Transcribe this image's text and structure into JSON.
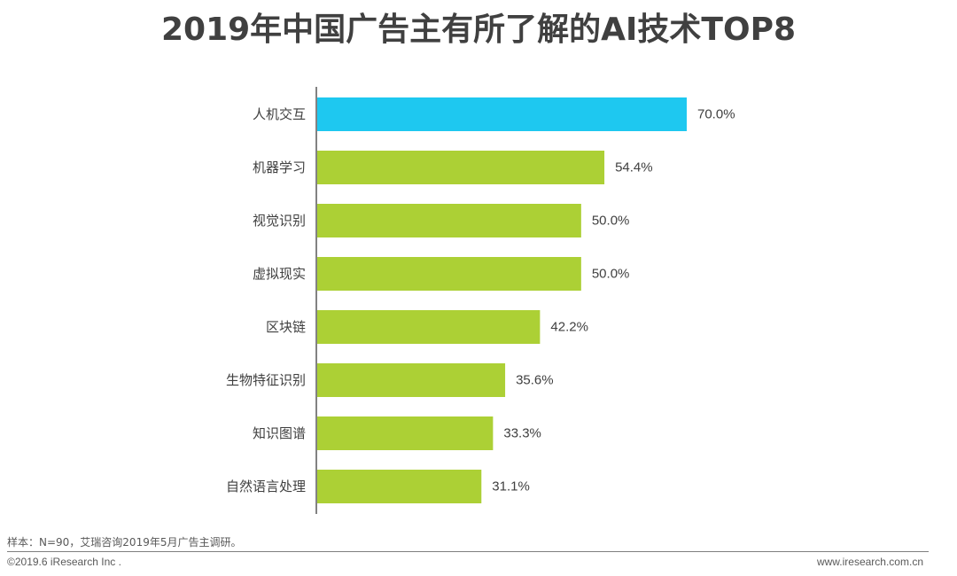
{
  "title": "2019年中国广告主有所了解的AI技术TOP8",
  "chart_data": {
    "type": "bar",
    "orientation": "horizontal",
    "categories": [
      "人机交互",
      "机器学习",
      "视觉识别",
      "虚拟现实",
      "区块链",
      "生物特征识别",
      "知识图谱",
      "自然语言处理"
    ],
    "values": [
      70.0,
      54.4,
      50.0,
      50.0,
      42.2,
      35.6,
      33.3,
      31.1
    ],
    "value_labels": [
      "70.0%",
      "54.4%",
      "50.0%",
      "50.0%",
      "42.2%",
      "35.6%",
      "33.3%",
      "31.1%"
    ],
    "unit": "%",
    "xlim": [
      0,
      70
    ],
    "highlight_index": 0,
    "colors": {
      "highlight": "#1ec8f0",
      "default": "#acd035",
      "axis": "#595959",
      "label": "#404040"
    },
    "title": "2019年中国广告主有所了解的AI技术TOP8",
    "xlabel": "",
    "ylabel": "",
    "grid": false,
    "legend": "none"
  },
  "footer": {
    "note": "样本：N=90，艾瑞咨询2019年5月广告主调研。",
    "copyright": "©2019.6 iResearch Inc .",
    "website": "www.iresearch.com.cn"
  }
}
